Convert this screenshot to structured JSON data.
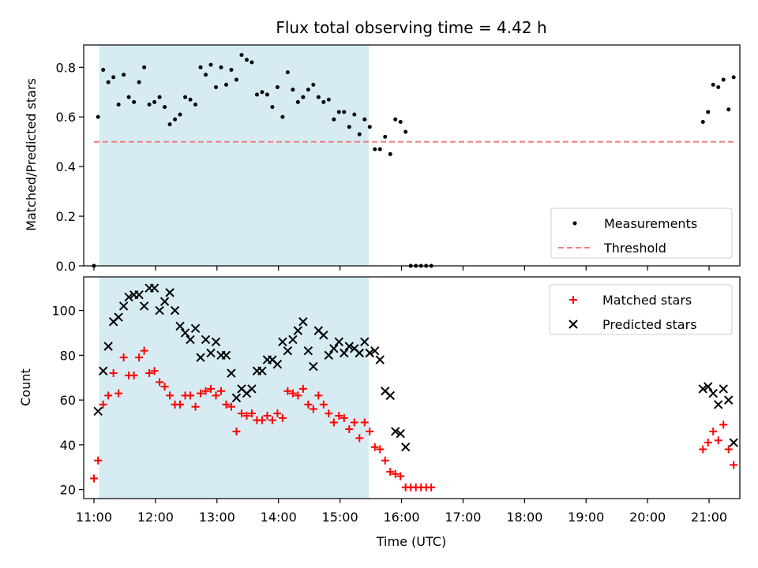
{
  "chart_data": {
    "title": "Flux total observing time = 4.42 h",
    "xlabel": "Time (UTC)",
    "x_ticks": [
      "11:00",
      "12:00",
      "13:00",
      "14:00",
      "15:00",
      "16:00",
      "17:00",
      "18:00",
      "19:00",
      "20:00",
      "21:00"
    ],
    "xlim": [
      "10:50",
      "21:30"
    ],
    "shaded_interval": [
      "11:05",
      "15:28"
    ],
    "shade_color": "#add8e6",
    "panels": [
      {
        "id": "ratio",
        "type": "scatter",
        "ylabel": "Matched/Predicted stars",
        "ylim": [
          0,
          0.89
        ],
        "y_ticks": [
          0.0,
          0.2,
          0.4,
          0.6,
          0.8
        ],
        "y_tick_labels": [
          "0.0",
          "0.2",
          "0.4",
          "0.6",
          "0.8"
        ],
        "legend_position": "lower-right",
        "series": [
          {
            "name": "Measurements",
            "marker": "dot",
            "color": "#000000",
            "points": [
              [
                "11:00",
                0.0
              ],
              [
                "11:04",
                0.6
              ],
              [
                "11:09",
                0.79
              ],
              [
                "11:14",
                0.74
              ],
              [
                "11:19",
                0.76
              ],
              [
                "11:24",
                0.65
              ],
              [
                "11:29",
                0.77
              ],
              [
                "11:34",
                0.68
              ],
              [
                "11:39",
                0.66
              ],
              [
                "11:44",
                0.74
              ],
              [
                "11:49",
                0.8
              ],
              [
                "11:54",
                0.65
              ],
              [
                "11:59",
                0.66
              ],
              [
                "12:04",
                0.68
              ],
              [
                "12:09",
                0.64
              ],
              [
                "12:14",
                0.57
              ],
              [
                "12:19",
                0.59
              ],
              [
                "12:24",
                0.61
              ],
              [
                "12:29",
                0.68
              ],
              [
                "12:34",
                0.67
              ],
              [
                "12:39",
                0.65
              ],
              [
                "12:44",
                0.8
              ],
              [
                "12:49",
                0.77
              ],
              [
                "12:54",
                0.81
              ],
              [
                "12:59",
                0.72
              ],
              [
                "13:04",
                0.8
              ],
              [
                "13:09",
                0.73
              ],
              [
                "13:14",
                0.79
              ],
              [
                "13:19",
                0.75
              ],
              [
                "13:24",
                0.85
              ],
              [
                "13:29",
                0.83
              ],
              [
                "13:34",
                0.82
              ],
              [
                "13:39",
                0.69
              ],
              [
                "13:44",
                0.7
              ],
              [
                "13:49",
                0.69
              ],
              [
                "13:54",
                0.64
              ],
              [
                "13:59",
                0.72
              ],
              [
                "14:04",
                0.6
              ],
              [
                "14:09",
                0.78
              ],
              [
                "14:14",
                0.71
              ],
              [
                "14:19",
                0.66
              ],
              [
                "14:24",
                0.68
              ],
              [
                "14:29",
                0.71
              ],
              [
                "14:34",
                0.73
              ],
              [
                "14:39",
                0.68
              ],
              [
                "14:44",
                0.66
              ],
              [
                "14:49",
                0.67
              ],
              [
                "14:54",
                0.59
              ],
              [
                "14:59",
                0.62
              ],
              [
                "15:04",
                0.62
              ],
              [
                "15:09",
                0.56
              ],
              [
                "15:14",
                0.61
              ],
              [
                "15:19",
                0.53
              ],
              [
                "15:24",
                0.59
              ],
              [
                "15:29",
                0.56
              ],
              [
                "15:34",
                0.47
              ],
              [
                "15:39",
                0.47
              ],
              [
                "15:44",
                0.52
              ],
              [
                "15:49",
                0.45
              ],
              [
                "15:54",
                0.59
              ],
              [
                "15:59",
                0.58
              ],
              [
                "16:04",
                0.54
              ],
              [
                "16:09",
                0.0
              ],
              [
                "16:14",
                0.0
              ],
              [
                "16:19",
                0.0
              ],
              [
                "16:24",
                0.0
              ],
              [
                "16:29",
                0.0
              ],
              [
                "20:54",
                0.58
              ],
              [
                "20:59",
                0.62
              ],
              [
                "21:04",
                0.73
              ],
              [
                "21:09",
                0.72
              ],
              [
                "21:14",
                0.75
              ],
              [
                "21:19",
                0.63
              ],
              [
                "21:24",
                0.76
              ]
            ]
          },
          {
            "name": "Threshold",
            "marker": "dashed-line",
            "color": "#f08080",
            "points": [
              [
                "11:00",
                0.5
              ],
              [
                "21:25",
                0.5
              ]
            ]
          }
        ]
      },
      {
        "id": "counts",
        "type": "scatter",
        "ylabel": "Count",
        "ylim": [
          16,
          115
        ],
        "y_ticks": [
          20,
          40,
          60,
          80,
          100
        ],
        "y_tick_labels": [
          "20",
          "40",
          "60",
          "80",
          "100"
        ],
        "legend_position": "upper-right",
        "series": [
          {
            "name": "Matched stars",
            "marker": "plus",
            "color": "#ff0000",
            "points": [
              [
                "11:00",
                25
              ],
              [
                "11:04",
                33
              ],
              [
                "11:09",
                58
              ],
              [
                "11:14",
                62
              ],
              [
                "11:19",
                72
              ],
              [
                "11:24",
                63
              ],
              [
                "11:29",
                79
              ],
              [
                "11:34",
                71
              ],
              [
                "11:39",
                71
              ],
              [
                "11:44",
                79
              ],
              [
                "11:49",
                82
              ],
              [
                "11:54",
                72
              ],
              [
                "11:59",
                73
              ],
              [
                "12:04",
                68
              ],
              [
                "12:09",
                66
              ],
              [
                "12:14",
                62
              ],
              [
                "12:19",
                58
              ],
              [
                "12:24",
                58
              ],
              [
                "12:29",
                62
              ],
              [
                "12:34",
                62
              ],
              [
                "12:39",
                57
              ],
              [
                "12:44",
                63
              ],
              [
                "12:49",
                64
              ],
              [
                "12:54",
                65
              ],
              [
                "12:59",
                62
              ],
              [
                "13:04",
                64
              ],
              [
                "13:09",
                58
              ],
              [
                "13:14",
                57
              ],
              [
                "13:19",
                46
              ],
              [
                "13:24",
                54
              ],
              [
                "13:29",
                53
              ],
              [
                "13:34",
                54
              ],
              [
                "13:39",
                51
              ],
              [
                "13:44",
                51
              ],
              [
                "13:49",
                53
              ],
              [
                "13:54",
                51
              ],
              [
                "13:59",
                54
              ],
              [
                "14:04",
                52
              ],
              [
                "14:09",
                64
              ],
              [
                "14:14",
                63
              ],
              [
                "14:19",
                62
              ],
              [
                "14:24",
                65
              ],
              [
                "14:29",
                58
              ],
              [
                "14:34",
                56
              ],
              [
                "14:39",
                62
              ],
              [
                "14:44",
                58
              ],
              [
                "14:49",
                54
              ],
              [
                "14:54",
                50
              ],
              [
                "14:59",
                53
              ],
              [
                "15:04",
                52
              ],
              [
                "15:09",
                47
              ],
              [
                "15:14",
                50
              ],
              [
                "15:19",
                43
              ],
              [
                "15:24",
                50
              ],
              [
                "15:29",
                46
              ],
              [
                "15:34",
                39
              ],
              [
                "15:39",
                38
              ],
              [
                "15:44",
                33
              ],
              [
                "15:49",
                28
              ],
              [
                "15:54",
                27
              ],
              [
                "15:59",
                26
              ],
              [
                "16:04",
                21
              ],
              [
                "16:09",
                21
              ],
              [
                "16:14",
                21
              ],
              [
                "16:19",
                21
              ],
              [
                "16:24",
                21
              ],
              [
                "16:29",
                21
              ],
              [
                "20:54",
                38
              ],
              [
                "20:59",
                41
              ],
              [
                "21:04",
                46
              ],
              [
                "21:09",
                42
              ],
              [
                "21:14",
                49
              ],
              [
                "21:19",
                38
              ],
              [
                "21:24",
                31
              ]
            ]
          },
          {
            "name": "Predicted stars",
            "marker": "x",
            "color": "#000000",
            "points": [
              [
                "11:04",
                55
              ],
              [
                "11:09",
                73
              ],
              [
                "11:14",
                84
              ],
              [
                "11:19",
                95
              ],
              [
                "11:24",
                97
              ],
              [
                "11:29",
                102
              ],
              [
                "11:34",
                106
              ],
              [
                "11:39",
                107
              ],
              [
                "11:44",
                107
              ],
              [
                "11:49",
                102
              ],
              [
                "11:54",
                110
              ],
              [
                "11:59",
                110
              ],
              [
                "12:04",
                100
              ],
              [
                "12:09",
                104
              ],
              [
                "12:14",
                108
              ],
              [
                "12:19",
                100
              ],
              [
                "12:24",
                93
              ],
              [
                "12:29",
                90
              ],
              [
                "12:34",
                87
              ],
              [
                "12:39",
                92
              ],
              [
                "12:44",
                79
              ],
              [
                "12:49",
                87
              ],
              [
                "12:54",
                81
              ],
              [
                "12:59",
                86
              ],
              [
                "13:04",
                80
              ],
              [
                "13:09",
                80
              ],
              [
                "13:14",
                72
              ],
              [
                "13:19",
                61
              ],
              [
                "13:24",
                65
              ],
              [
                "13:29",
                63
              ],
              [
                "13:34",
                65
              ],
              [
                "13:39",
                73
              ],
              [
                "13:44",
                73
              ],
              [
                "13:49",
                78
              ],
              [
                "13:54",
                78
              ],
              [
                "13:59",
                76
              ],
              [
                "14:04",
                86
              ],
              [
                "14:09",
                82
              ],
              [
                "14:14",
                87
              ],
              [
                "14:19",
                91
              ],
              [
                "14:24",
                95
              ],
              [
                "14:29",
                82
              ],
              [
                "14:34",
                75
              ],
              [
                "14:39",
                91
              ],
              [
                "14:44",
                89
              ],
              [
                "14:49",
                80
              ],
              [
                "14:54",
                83
              ],
              [
                "14:59",
                86
              ],
              [
                "15:04",
                81
              ],
              [
                "15:09",
                84
              ],
              [
                "15:14",
                83
              ],
              [
                "15:19",
                81
              ],
              [
                "15:24",
                86
              ],
              [
                "15:29",
                81
              ],
              [
                "15:34",
                82
              ],
              [
                "15:39",
                78
              ],
              [
                "15:44",
                64
              ],
              [
                "15:49",
                62
              ],
              [
                "15:54",
                46
              ],
              [
                "15:59",
                45
              ],
              [
                "16:04",
                39
              ],
              [
                "20:54",
                65
              ],
              [
                "20:59",
                66
              ],
              [
                "21:04",
                63
              ],
              [
                "21:09",
                58
              ],
              [
                "21:14",
                65
              ],
              [
                "21:19",
                60
              ],
              [
                "21:24",
                41
              ]
            ]
          }
        ]
      }
    ]
  }
}
